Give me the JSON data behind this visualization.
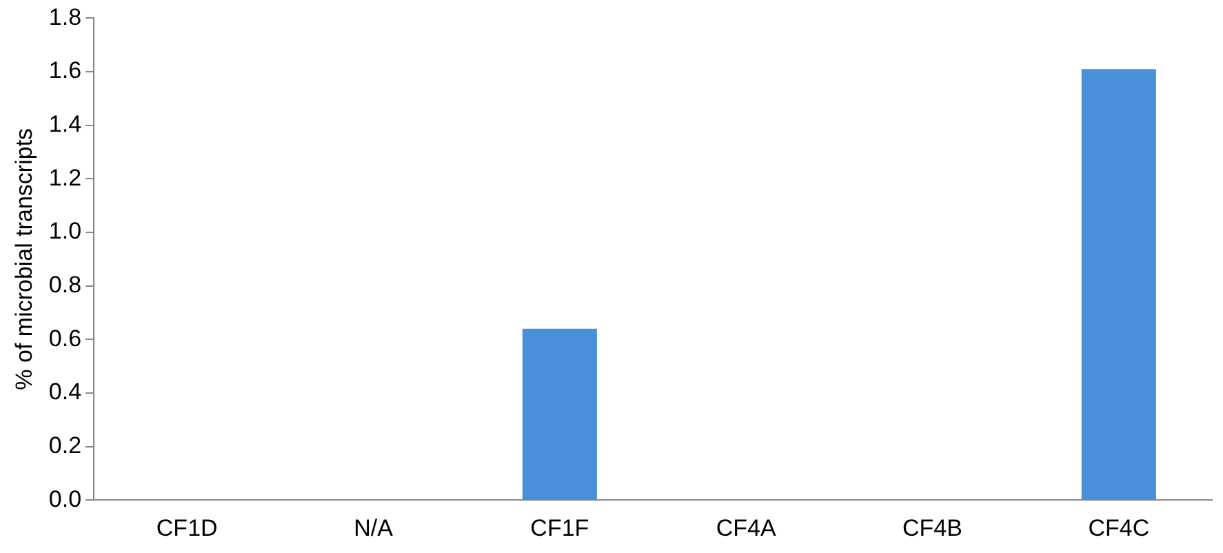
{
  "chart_data": {
    "type": "bar",
    "ylabel": "% of microbial transcripts",
    "categories": [
      "CF1D",
      "N/A",
      "CF1F",
      "CF4A",
      "CF4B",
      "CF4C"
    ],
    "values": [
      0,
      0,
      0.64,
      0,
      0,
      1.61
    ],
    "color": "#4a90d9",
    "ylim": [
      0,
      1.8
    ],
    "yticks": [
      {
        "value": 0,
        "label": "0.0"
      },
      {
        "value": 0.2,
        "label": "0.2"
      },
      {
        "value": 0.4,
        "label": "0.4"
      },
      {
        "value": 0.6,
        "label": "0.6"
      },
      {
        "value": 0.8,
        "label": "0.8"
      },
      {
        "value": 1,
        "label": "1.0"
      },
      {
        "value": 1.2,
        "label": "1.2"
      },
      {
        "value": 1.4,
        "label": "1.4"
      },
      {
        "value": 1.6,
        "label": "1.6"
      },
      {
        "value": 1.8,
        "label": "1.8"
      }
    ],
    "grid": false,
    "legend": false
  }
}
